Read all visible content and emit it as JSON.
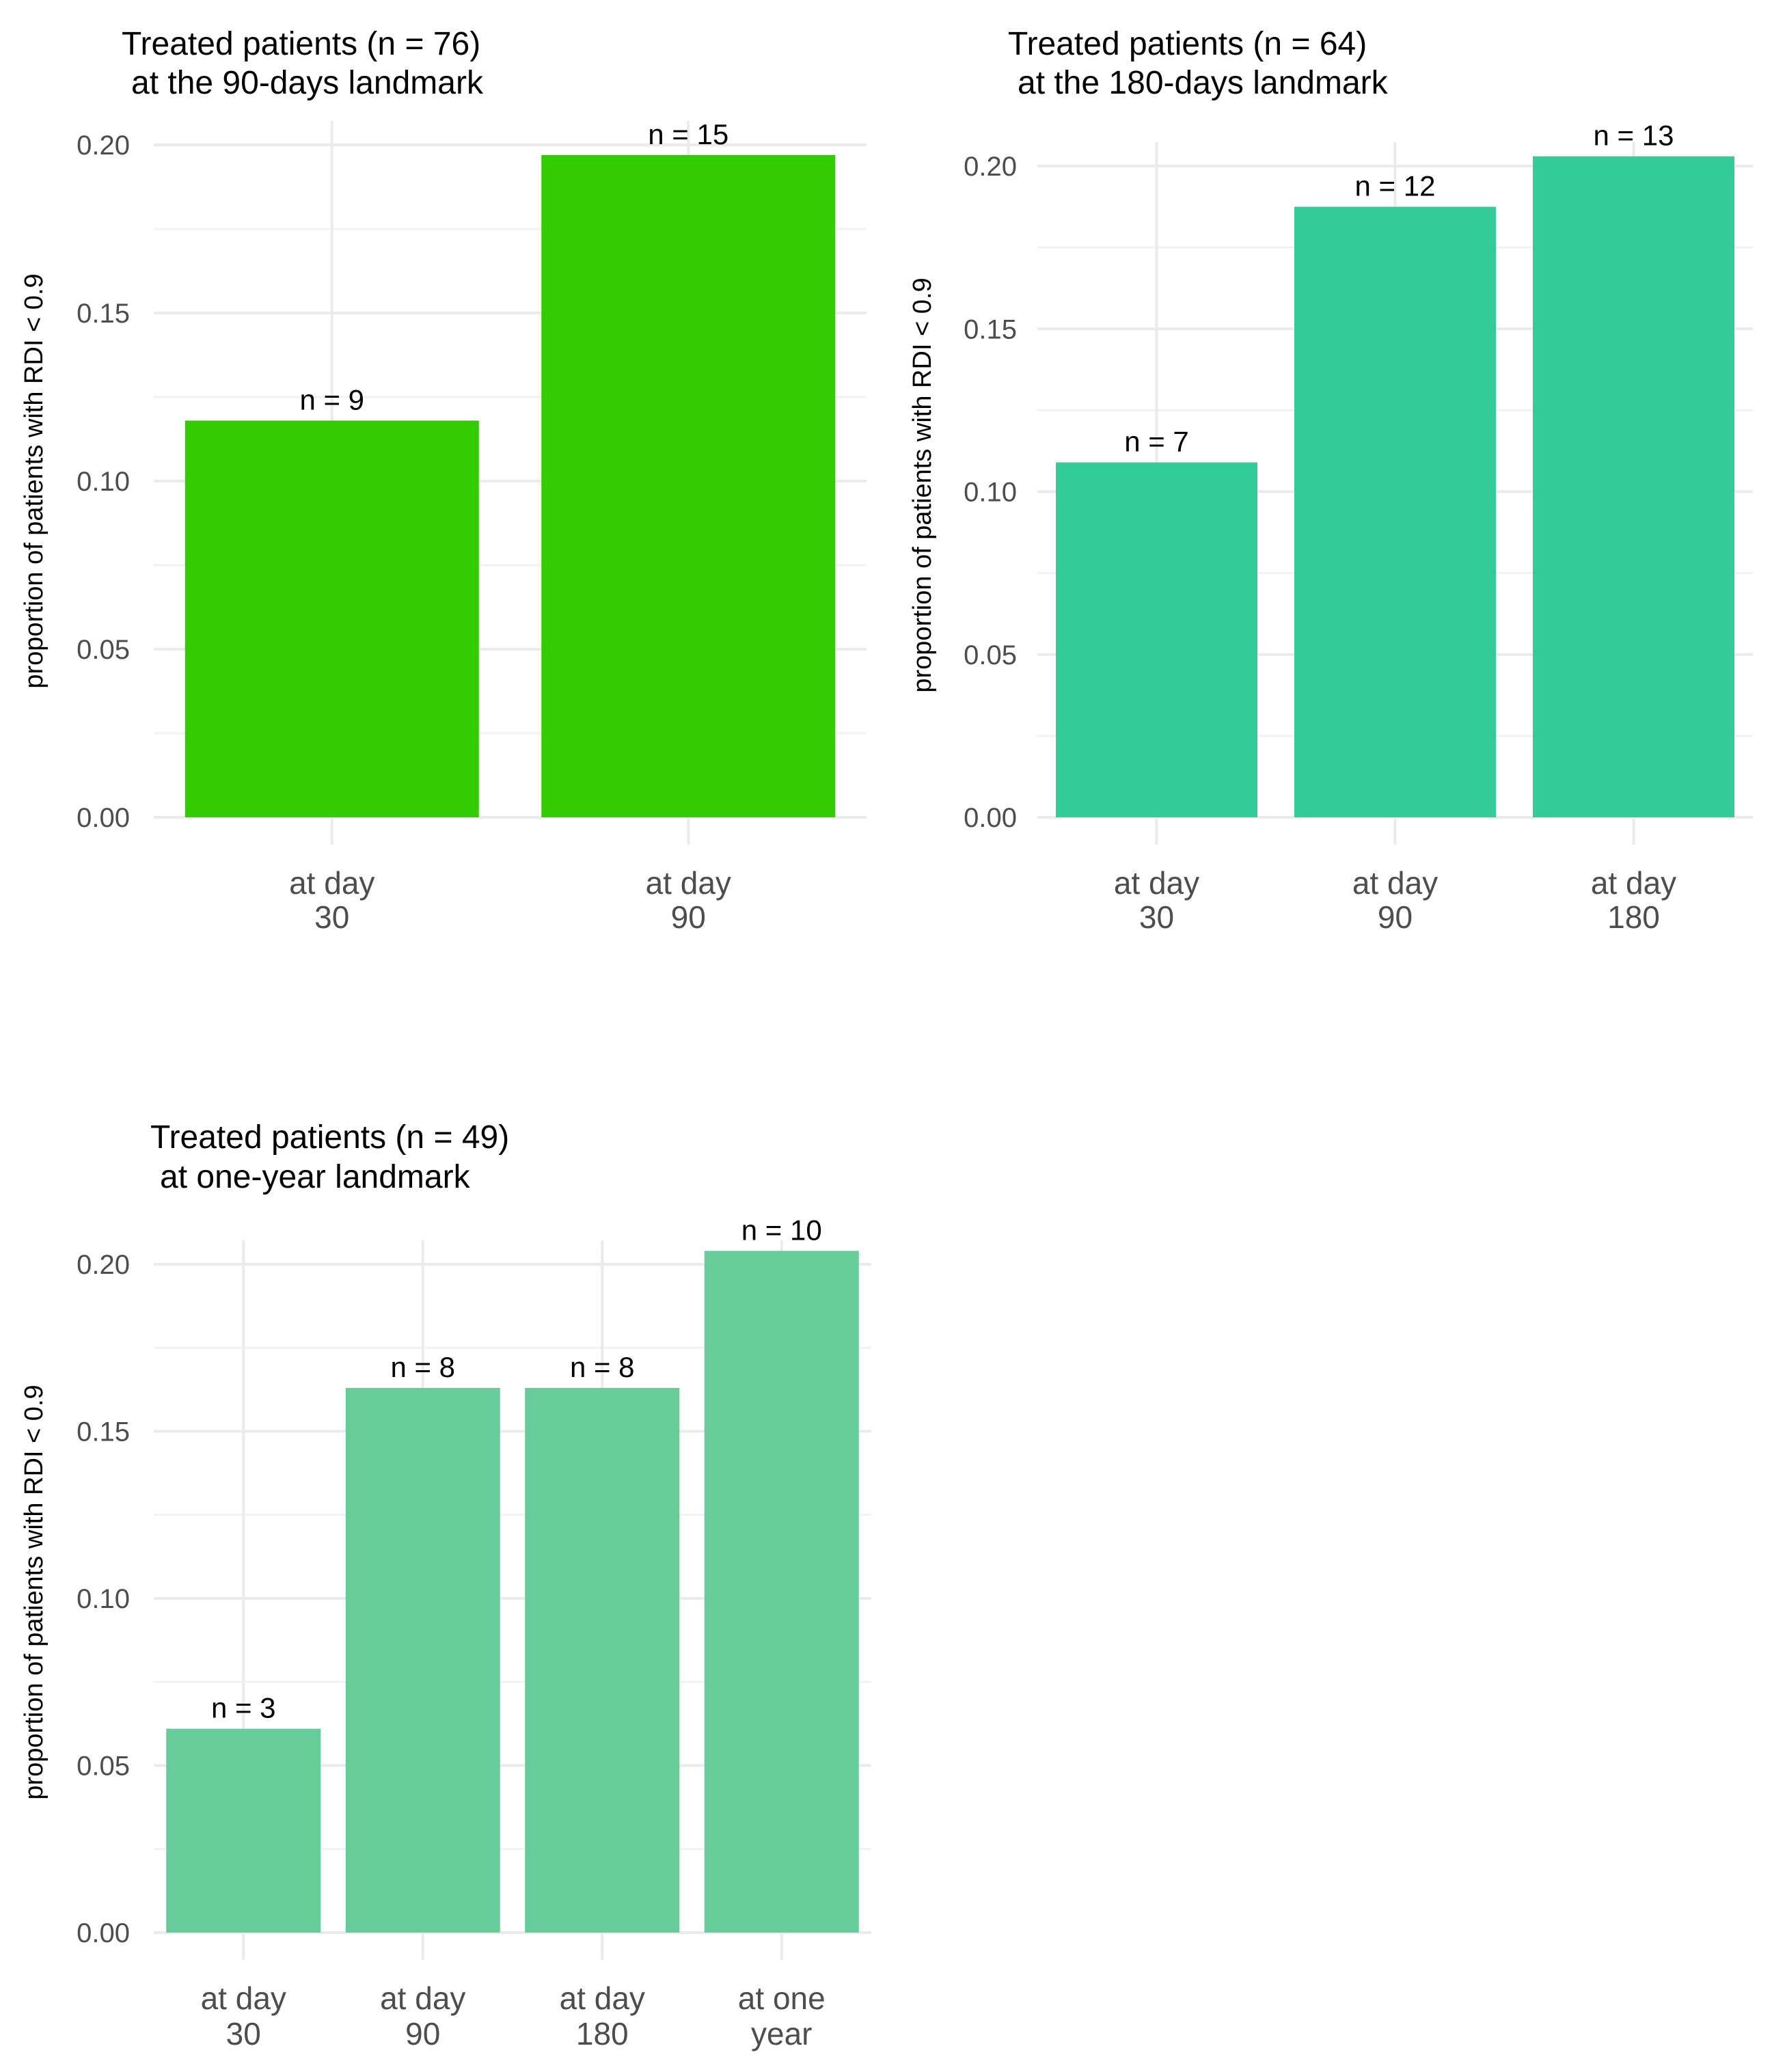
{
  "chart_data": [
    {
      "type": "bar",
      "title": [
        "Treated patients (n = 76)",
        "at the 90-days landmark"
      ],
      "ylabel": "proportion of patients with RDI < 0.9",
      "xlabel": "",
      "categories": [
        [
          "at day",
          "30"
        ],
        [
          "at day",
          "90"
        ]
      ],
      "values": [
        0.118,
        0.197
      ],
      "labels": [
        "n = 9",
        "n = 15"
      ],
      "ylim": [
        0,
        0.2
      ],
      "yticks": [
        "0.00",
        "0.05",
        "0.10",
        "0.15",
        "0.20"
      ],
      "color": "#33cc00",
      "grid": true
    },
    {
      "type": "bar",
      "title": [
        "Treated patients (n = 64)",
        "at the 180-days landmark"
      ],
      "ylabel": "proportion of patients with RDI < 0.9",
      "xlabel": "",
      "categories": [
        [
          "at day",
          "30"
        ],
        [
          "at day",
          "90"
        ],
        [
          "at day",
          "180"
        ]
      ],
      "values": [
        0.109,
        0.1875,
        0.203
      ],
      "labels": [
        "n = 7",
        "n = 12",
        "n = 13"
      ],
      "ylim": [
        0,
        0.2
      ],
      "yticks": [
        "0.00",
        "0.05",
        "0.10",
        "0.15",
        "0.20"
      ],
      "color": "#33cc99",
      "grid": true
    },
    {
      "type": "bar",
      "title": [
        "Treated patients (n = 49)",
        "at one-year landmark"
      ],
      "ylabel": "proportion of patients with RDI < 0.9",
      "xlabel": "",
      "categories": [
        [
          "at day",
          "30"
        ],
        [
          "at day",
          "90"
        ],
        [
          "at day",
          "180"
        ],
        [
          "at one",
          "year"
        ]
      ],
      "values": [
        0.061,
        0.163,
        0.163,
        0.204
      ],
      "labels": [
        "n = 3",
        "n = 8",
        "n = 8",
        "n = 10"
      ],
      "ylim": [
        0,
        0.2
      ],
      "yticks": [
        "0.00",
        "0.05",
        "0.10",
        "0.15",
        "0.20"
      ],
      "color": "#66cc99",
      "grid": true
    }
  ]
}
